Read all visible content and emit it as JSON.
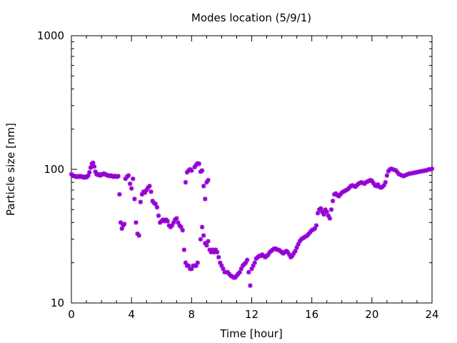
{
  "chart_data": {
    "type": "scatter",
    "title": "Modes location (5/9/1)",
    "xlabel": "Time [hour]",
    "ylabel": "Particle size [nm]",
    "xlim": [
      0,
      24
    ],
    "ylim": [
      10,
      1000
    ],
    "yscale": "log",
    "x_ticks": [
      0,
      4,
      8,
      12,
      16,
      20,
      24
    ],
    "x_tick_labels": [
      "0",
      "4",
      "8",
      "12",
      "16",
      "20",
      "24"
    ],
    "y_ticks": [
      10,
      100,
      1000
    ],
    "y_tick_labels": [
      "10",
      "100",
      "1000"
    ],
    "grid": false,
    "marker": "asterisk",
    "color": "#9400d3",
    "points": [
      [
        0.0,
        92
      ],
      [
        0.08,
        90
      ],
      [
        0.16,
        89
      ],
      [
        0.24,
        89
      ],
      [
        0.32,
        88
      ],
      [
        0.4,
        88
      ],
      [
        0.48,
        89
      ],
      [
        0.56,
        88
      ],
      [
        0.64,
        89
      ],
      [
        0.72,
        88
      ],
      [
        0.8,
        87
      ],
      [
        0.88,
        88
      ],
      [
        0.96,
        87
      ],
      [
        1.04,
        88
      ],
      [
        1.12,
        90
      ],
      [
        1.2,
        95
      ],
      [
        1.28,
        103
      ],
      [
        1.36,
        110
      ],
      [
        1.44,
        112
      ],
      [
        1.52,
        105
      ],
      [
        1.6,
        96
      ],
      [
        1.68,
        92
      ],
      [
        1.76,
        91
      ],
      [
        1.84,
        92
      ],
      [
        1.92,
        90
      ],
      [
        2.0,
        91
      ],
      [
        2.08,
        92
      ],
      [
        2.16,
        93
      ],
      [
        2.24,
        92
      ],
      [
        2.32,
        91
      ],
      [
        2.4,
        90
      ],
      [
        2.48,
        90
      ],
      [
        2.56,
        89
      ],
      [
        2.64,
        90
      ],
      [
        2.72,
        89
      ],
      [
        2.8,
        88
      ],
      [
        2.88,
        89
      ],
      [
        2.96,
        89
      ],
      [
        3.04,
        88
      ],
      [
        3.12,
        89
      ],
      [
        3.2,
        65
      ],
      [
        3.28,
        40
      ],
      [
        3.36,
        36
      ],
      [
        3.44,
        38
      ],
      [
        3.52,
        39
      ],
      [
        3.6,
        85
      ],
      [
        3.7,
        88
      ],
      [
        3.8,
        90
      ],
      [
        3.9,
        78
      ],
      [
        4.0,
        72
      ],
      [
        4.1,
        85
      ],
      [
        4.2,
        60
      ],
      [
        4.3,
        40
      ],
      [
        4.4,
        33
      ],
      [
        4.5,
        32
      ],
      [
        4.6,
        57
      ],
      [
        4.7,
        65
      ],
      [
        4.8,
        68
      ],
      [
        4.9,
        67
      ],
      [
        5.0,
        70
      ],
      [
        5.1,
        73
      ],
      [
        5.2,
        75
      ],
      [
        5.3,
        68
      ],
      [
        5.4,
        58
      ],
      [
        5.5,
        56
      ],
      [
        5.6,
        55
      ],
      [
        5.7,
        52
      ],
      [
        5.8,
        45
      ],
      [
        5.9,
        40
      ],
      [
        6.0,
        41
      ],
      [
        6.1,
        42
      ],
      [
        6.2,
        41
      ],
      [
        6.3,
        42
      ],
      [
        6.4,
        41
      ],
      [
        6.5,
        38
      ],
      [
        6.6,
        37
      ],
      [
        6.7,
        38
      ],
      [
        6.8,
        40
      ],
      [
        6.9,
        42
      ],
      [
        7.0,
        43
      ],
      [
        7.1,
        40
      ],
      [
        7.2,
        38
      ],
      [
        7.3,
        37
      ],
      [
        7.4,
        35
      ],
      [
        7.5,
        25
      ],
      [
        7.6,
        20
      ],
      [
        7.7,
        19
      ],
      [
        7.8,
        19
      ],
      [
        7.9,
        18
      ],
      [
        8.0,
        18
      ],
      [
        8.1,
        19
      ],
      [
        8.2,
        19
      ],
      [
        8.3,
        19
      ],
      [
        8.4,
        20
      ],
      [
        7.6,
        80
      ],
      [
        7.7,
        95
      ],
      [
        7.8,
        98
      ],
      [
        7.9,
        100
      ],
      [
        8.0,
        98
      ],
      [
        8.2,
        104
      ],
      [
        8.3,
        108
      ],
      [
        8.4,
        111
      ],
      [
        8.5,
        110
      ],
      [
        8.6,
        96
      ],
      [
        8.7,
        98
      ],
      [
        8.8,
        75
      ],
      [
        8.9,
        60
      ],
      [
        9.0,
        80
      ],
      [
        9.1,
        83
      ],
      [
        8.6,
        30
      ],
      [
        8.7,
        37
      ],
      [
        8.8,
        32
      ],
      [
        8.9,
        28
      ],
      [
        9.0,
        27
      ],
      [
        9.1,
        29
      ],
      [
        9.2,
        25
      ],
      [
        9.3,
        24
      ],
      [
        9.4,
        25
      ],
      [
        9.5,
        24
      ],
      [
        9.6,
        25
      ],
      [
        9.7,
        24
      ],
      [
        9.8,
        22
      ],
      [
        9.9,
        20
      ],
      [
        10.0,
        19
      ],
      [
        10.1,
        18
      ],
      [
        10.2,
        17
      ],
      [
        10.3,
        17
      ],
      [
        10.4,
        17
      ],
      [
        10.5,
        16.5
      ],
      [
        10.6,
        16
      ],
      [
        10.7,
        15.8
      ],
      [
        10.8,
        15.5
      ],
      [
        10.9,
        15.5
      ],
      [
        11.0,
        16
      ],
      [
        11.1,
        16.5
      ],
      [
        11.2,
        17
      ],
      [
        11.3,
        18
      ],
      [
        11.4,
        19
      ],
      [
        11.5,
        19.5
      ],
      [
        11.6,
        20
      ],
      [
        11.7,
        21
      ],
      [
        11.8,
        17
      ],
      [
        11.9,
        13.5
      ],
      [
        12.0,
        18
      ],
      [
        12.1,
        19
      ],
      [
        12.2,
        20
      ],
      [
        12.3,
        21.5
      ],
      [
        12.4,
        22
      ],
      [
        12.5,
        22.5
      ],
      [
        12.6,
        22.5
      ],
      [
        12.7,
        23
      ],
      [
        12.8,
        22.5
      ],
      [
        12.9,
        22
      ],
      [
        13.0,
        22.5
      ],
      [
        13.1,
        23
      ],
      [
        13.2,
        24
      ],
      [
        13.3,
        24.5
      ],
      [
        13.4,
        25
      ],
      [
        13.5,
        25.5
      ],
      [
        13.6,
        25.5
      ],
      [
        13.7,
        25
      ],
      [
        13.8,
        25
      ],
      [
        13.9,
        24.5
      ],
      [
        14.0,
        24
      ],
      [
        14.1,
        23.5
      ],
      [
        14.2,
        24
      ],
      [
        14.3,
        24.5
      ],
      [
        14.4,
        24
      ],
      [
        14.5,
        23
      ],
      [
        14.6,
        22
      ],
      [
        14.7,
        22.5
      ],
      [
        14.8,
        23.5
      ],
      [
        14.9,
        24.5
      ],
      [
        15.0,
        26
      ],
      [
        15.1,
        27.5
      ],
      [
        15.2,
        29
      ],
      [
        15.3,
        30
      ],
      [
        15.4,
        30.5
      ],
      [
        15.5,
        31
      ],
      [
        15.6,
        31.5
      ],
      [
        15.7,
        32
      ],
      [
        15.8,
        33
      ],
      [
        15.9,
        34
      ],
      [
        16.0,
        35
      ],
      [
        16.1,
        35.5
      ],
      [
        16.2,
        36
      ],
      [
        16.3,
        38
      ],
      [
        16.4,
        47
      ],
      [
        16.5,
        50
      ],
      [
        16.6,
        51
      ],
      [
        16.7,
        48
      ],
      [
        16.8,
        46
      ],
      [
        16.9,
        50
      ],
      [
        17.0,
        48
      ],
      [
        17.1,
        45
      ],
      [
        17.2,
        43
      ],
      [
        17.3,
        50
      ],
      [
        17.4,
        58
      ],
      [
        17.5,
        65
      ],
      [
        17.6,
        66
      ],
      [
        17.7,
        64
      ],
      [
        17.8,
        63
      ],
      [
        17.9,
        65
      ],
      [
        18.0,
        67
      ],
      [
        18.1,
        68
      ],
      [
        18.2,
        69
      ],
      [
        18.3,
        70
      ],
      [
        18.4,
        71
      ],
      [
        18.5,
        73
      ],
      [
        18.6,
        75
      ],
      [
        18.7,
        76
      ],
      [
        18.8,
        75
      ],
      [
        18.9,
        74
      ],
      [
        19.0,
        76
      ],
      [
        19.1,
        78
      ],
      [
        19.2,
        79
      ],
      [
        19.3,
        80
      ],
      [
        19.4,
        79
      ],
      [
        19.5,
        78
      ],
      [
        19.6,
        80
      ],
      [
        19.7,
        81
      ],
      [
        19.8,
        82
      ],
      [
        19.9,
        83
      ],
      [
        20.0,
        82
      ],
      [
        20.1,
        79
      ],
      [
        20.2,
        76
      ],
      [
        20.3,
        75
      ],
      [
        20.4,
        77
      ],
      [
        20.5,
        74
      ],
      [
        20.6,
        73
      ],
      [
        20.7,
        74
      ],
      [
        20.8,
        76
      ],
      [
        20.9,
        80
      ],
      [
        21.0,
        90
      ],
      [
        21.1,
        97
      ],
      [
        21.2,
        100
      ],
      [
        21.3,
        101
      ],
      [
        21.4,
        100
      ],
      [
        21.5,
        99
      ],
      [
        21.6,
        98
      ],
      [
        21.7,
        95
      ],
      [
        21.8,
        92
      ],
      [
        21.9,
        91
      ],
      [
        22.0,
        90
      ],
      [
        22.1,
        89
      ],
      [
        22.2,
        90
      ],
      [
        22.3,
        91
      ],
      [
        22.4,
        92
      ],
      [
        22.5,
        93
      ],
      [
        22.6,
        93
      ],
      [
        22.7,
        94
      ],
      [
        22.8,
        94
      ],
      [
        22.9,
        95
      ],
      [
        23.0,
        95
      ],
      [
        23.1,
        96
      ],
      [
        23.2,
        96
      ],
      [
        23.3,
        97
      ],
      [
        23.4,
        97
      ],
      [
        23.5,
        98
      ],
      [
        23.6,
        98
      ],
      [
        23.7,
        99
      ],
      [
        23.8,
        100
      ],
      [
        23.9,
        100
      ],
      [
        24.0,
        101
      ]
    ]
  }
}
